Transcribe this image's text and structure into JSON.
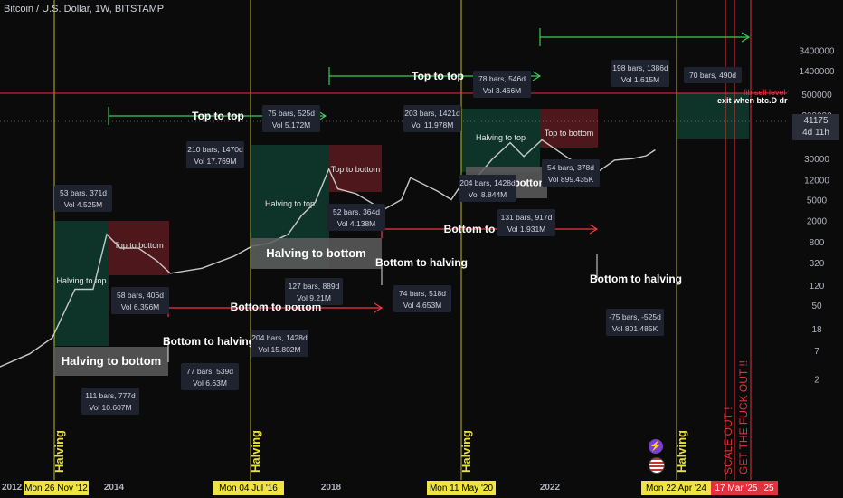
{
  "header": {
    "title": "Bitcoin / U.S. Dollar, 1W, BITSTAMP"
  },
  "price_tag": {
    "price": "41175",
    "countdown": "4d 11h"
  },
  "sell_level_label": "fib sell level",
  "exit_label": "exit when btc.D dr",
  "icons": {
    "lightning": "lightning-icon",
    "flag": "us-flag-icon"
  },
  "colors": {
    "bg": "#0b0b0b",
    "candle": "#c8c8c8",
    "green_zone": "#0f3b2f",
    "red_zone": "#5a1a1e",
    "grey_box": "#5d5d5d",
    "yellow_line": "#e6e13a",
    "arrow_green": "#3cc95a",
    "arrow_red": "#f23645",
    "sell_line": "#e0323c"
  },
  "chart_data": {
    "type": "line",
    "symbol": "Bitcoin / U.S. Dollar, 1W, BITSTAMP",
    "yscale": "log",
    "y_ticks": [
      "3400000",
      "1400000",
      "500000",
      "200000",
      "80000",
      "30000",
      "12000",
      "5000",
      "2000",
      "800",
      "320",
      "120",
      "50",
      "18",
      "7",
      "2"
    ],
    "x_ticks": [
      "2012",
      "2014",
      "2018",
      "2022"
    ],
    "x_date_labels": [
      {
        "text": "Mon 26 Nov '12"
      },
      {
        "text": "Mon 04 Jul '16"
      },
      {
        "text": "Mon 11 May '20"
      },
      {
        "text": "Mon 22 Apr '24"
      },
      {
        "text": "17 Mar '25"
      },
      {
        "text": "25"
      }
    ],
    "x_partial": "2",
    "series": [
      {
        "x": [
          "2011-10",
          "2012-06",
          "2012-11",
          "2013-04",
          "2013-08",
          "2013-11",
          "2014-02",
          "2014-06",
          "2014-10",
          "2015-01",
          "2015-08",
          "2016-03",
          "2016-07",
          "2016-11",
          "2017-03",
          "2017-06",
          "2017-09",
          "2017-12",
          "2018-02",
          "2018-06",
          "2018-12",
          "2019-04",
          "2019-06",
          "2019-12",
          "2020-03",
          "2020-05",
          "2020-08",
          "2020-12",
          "2021-04",
          "2021-07",
          "2021-11",
          "2022-05",
          "2022-11",
          "2023-03",
          "2023-07",
          "2023-10",
          "2023-12"
        ],
        "y": [
          3,
          6,
          12,
          100,
          100,
          1100,
          600,
          600,
          350,
          200,
          250,
          420,
          650,
          750,
          1100,
          2500,
          4500,
          19000,
          8000,
          6500,
          3200,
          5000,
          13000,
          7200,
          5000,
          9000,
          11500,
          29000,
          60000,
          33000,
          68000,
          30000,
          16000,
          28000,
          30000,
          34000,
          44000
        ]
      }
    ],
    "halvings": [
      "Halving",
      "Halving",
      "Halving",
      "Halving"
    ],
    "scale_out_label": "SCALE OUT !",
    "get_out_label": "GET THE FUCK OUT !!",
    "zones": [
      {
        "text": "Halving to top",
        "kind": "green"
      },
      {
        "text": "Top to bottom",
        "kind": "red"
      },
      {
        "text": "Halving to top",
        "kind": "green"
      },
      {
        "text": "Top to bottom",
        "kind": "red"
      },
      {
        "text": "Halving to top",
        "kind": "green"
      },
      {
        "text": "Top to bottom",
        "kind": "red"
      }
    ],
    "grey_boxes": [
      "Halving to bottom",
      "Halving to bottom",
      "to bottom"
    ],
    "annotations": [
      "Top to top",
      "Top to top",
      "Bottom to bottom",
      "Bottom to bottom",
      "Bottom to halving",
      "Bottom to halving",
      "Bottom to halving"
    ],
    "info_boxes": [
      {
        "l1": "53 bars, 371d",
        "l2": "Vol 4.525M"
      },
      {
        "l1": "58 bars, 406d",
        "l2": "Vol 6.356M"
      },
      {
        "l1": "111 bars, 777d",
        "l2": "Vol 10.607M"
      },
      {
        "l1": "77 bars, 539d",
        "l2": "Vol 6.63M"
      },
      {
        "l1": "204 bars, 1428d",
        "l2": "Vol 15.802M"
      },
      {
        "l1": "127 bars, 889d",
        "l2": "Vol 9.21M"
      },
      {
        "l1": "75 bars, 525d",
        "l2": "Vol 5.172M"
      },
      {
        "l1": "210 bars, 1470d",
        "l2": "Vol 17.769M"
      },
      {
        "l1": "52 bars, 364d",
        "l2": "Vol 4.138M"
      },
      {
        "l1": "74 bars, 518d",
        "l2": "Vol 4.653M"
      },
      {
        "l1": "203 bars, 1421d",
        "l2": "Vol 11.978M"
      },
      {
        "l1": "78 bars, 546d",
        "l2": "Vol 3.466M"
      },
      {
        "l1": "204 bars, 1428d",
        "l2": "Vol 8.844M"
      },
      {
        "l1": "54 bars, 378d",
        "l2": "Vol 899.435K"
      },
      {
        "l1": "131 bars, 917d",
        "l2": "Vol 1.931M"
      },
      {
        "l1": "-75 bars, -525d",
        "l2": "Vol 801.485K"
      },
      {
        "l1": "198 bars, 1386d",
        "l2": "Vol 1.615M"
      },
      {
        "l1": "70 bars, 490d",
        "l2": ""
      }
    ]
  }
}
